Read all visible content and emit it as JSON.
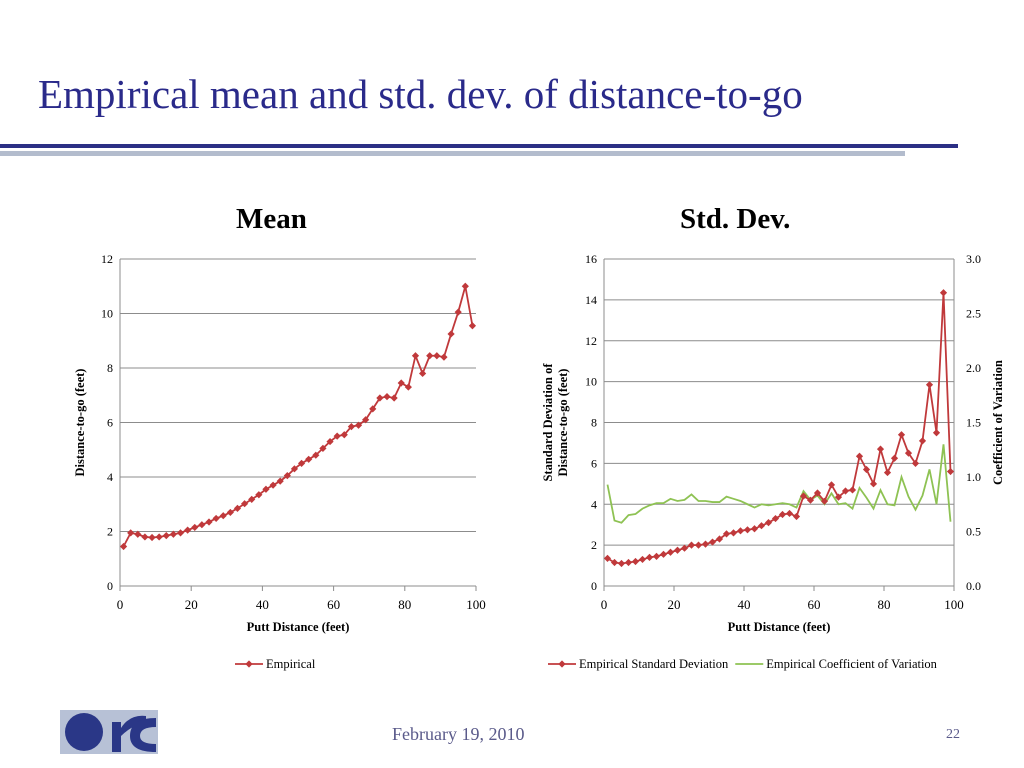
{
  "slide": {
    "title": "Empirical mean and std. dev. of distance-to-go",
    "footer_date": "February 19, 2010",
    "page_number": "22"
  },
  "colors": {
    "title": "#2a2a8a",
    "mean_series": "#c0393b",
    "cv_series": "#8ec253",
    "logo_blue": "#2a3787"
  },
  "chart_data": [
    {
      "type": "line",
      "title": "Mean",
      "xlabel": "Putt Distance (feet)",
      "ylabel": "Distance-to-go (feet)",
      "xlim": [
        0,
        100
      ],
      "ylim": [
        0,
        12
      ],
      "x_ticks": [
        "0",
        "20",
        "40",
        "60",
        "80",
        "100"
      ],
      "y_ticks": [
        "0",
        "2",
        "4",
        "6",
        "8",
        "10",
        "12"
      ],
      "grid": "horizontal",
      "legend": "bottom",
      "series": [
        {
          "name": "Empirical",
          "marker": "diamond",
          "x": [
            1,
            3,
            5,
            7,
            9,
            11,
            13,
            15,
            17,
            19,
            21,
            23,
            25,
            27,
            29,
            31,
            33,
            35,
            37,
            39,
            41,
            43,
            45,
            47,
            49,
            51,
            53,
            55,
            57,
            59,
            61,
            63,
            65,
            67,
            69,
            71,
            73,
            75,
            77,
            79,
            81,
            83,
            85,
            87,
            89,
            91,
            93,
            95,
            97,
            99
          ],
          "y": [
            1.45,
            1.95,
            1.9,
            1.8,
            1.78,
            1.8,
            1.85,
            1.9,
            1.95,
            2.05,
            2.15,
            2.25,
            2.35,
            2.48,
            2.58,
            2.7,
            2.85,
            3.02,
            3.18,
            3.35,
            3.55,
            3.7,
            3.85,
            4.05,
            4.3,
            4.5,
            4.65,
            4.8,
            5.05,
            5.3,
            5.5,
            5.55,
            5.85,
            5.9,
            6.1,
            6.5,
            6.9,
            6.95,
            6.9,
            7.45,
            7.3,
            8.45,
            7.8,
            8.45,
            8.45,
            8.4,
            9.25,
            10.05,
            11.0,
            9.55
          ]
        }
      ]
    },
    {
      "type": "line",
      "title": "Std. Dev.",
      "xlabel": "Putt Distance (feet)",
      "ylabel": "Standard Deviation of Distance-to-go (feet)",
      "y2label": "Coefficient of Variation",
      "xlim": [
        0,
        100
      ],
      "ylim": [
        0,
        16
      ],
      "y2lim": [
        0,
        3
      ],
      "x_ticks": [
        "0",
        "20",
        "40",
        "60",
        "80",
        "100"
      ],
      "y_ticks": [
        "0",
        "2",
        "4",
        "6",
        "8",
        "10",
        "12",
        "14",
        "16"
      ],
      "y2_ticks": [
        "0.0",
        "0.5",
        "1.0",
        "1.5",
        "2.0",
        "2.5",
        "3.0"
      ],
      "grid": "horizontal",
      "legend": "bottom",
      "series": [
        {
          "name": "Empirical Standard Deviation",
          "axis": "left",
          "marker": "diamond",
          "x": [
            1,
            3,
            5,
            7,
            9,
            11,
            13,
            15,
            17,
            19,
            21,
            23,
            25,
            27,
            29,
            31,
            33,
            35,
            37,
            39,
            41,
            43,
            45,
            47,
            49,
            51,
            53,
            55,
            57,
            59,
            61,
            63,
            65,
            67,
            69,
            71,
            73,
            75,
            77,
            79,
            81,
            83,
            85,
            87,
            89,
            91,
            93,
            95,
            97,
            99
          ],
          "y": [
            1.35,
            1.15,
            1.1,
            1.15,
            1.2,
            1.3,
            1.4,
            1.45,
            1.55,
            1.65,
            1.75,
            1.85,
            2.0,
            2.0,
            2.05,
            2.15,
            2.3,
            2.55,
            2.6,
            2.7,
            2.75,
            2.8,
            2.95,
            3.1,
            3.3,
            3.5,
            3.55,
            3.4,
            4.4,
            4.2,
            4.55,
            4.15,
            4.95,
            4.35,
            4.65,
            4.7,
            6.35,
            5.7,
            5.0,
            6.7,
            5.55,
            6.25,
            7.4,
            6.5,
            6.0,
            7.1,
            9.85,
            7.5,
            14.35,
            5.6
          ]
        },
        {
          "name": "Empirical Coefficient of Variation",
          "axis": "right",
          "marker": "none",
          "x": [
            1,
            3,
            5,
            7,
            9,
            11,
            13,
            15,
            17,
            19,
            21,
            23,
            25,
            27,
            29,
            31,
            33,
            35,
            37,
            39,
            41,
            43,
            45,
            47,
            49,
            51,
            53,
            55,
            57,
            59,
            61,
            63,
            65,
            67,
            69,
            71,
            73,
            75,
            77,
            79,
            81,
            83,
            85,
            87,
            89,
            91,
            93,
            95,
            97,
            99
          ],
          "y": [
            0.93,
            0.6,
            0.58,
            0.65,
            0.66,
            0.71,
            0.74,
            0.76,
            0.76,
            0.8,
            0.78,
            0.79,
            0.84,
            0.78,
            0.78,
            0.77,
            0.77,
            0.82,
            0.8,
            0.78,
            0.75,
            0.72,
            0.75,
            0.74,
            0.75,
            0.76,
            0.75,
            0.72,
            0.87,
            0.79,
            0.83,
            0.75,
            0.85,
            0.75,
            0.76,
            0.71,
            0.9,
            0.81,
            0.71,
            0.88,
            0.75,
            0.74,
            1.0,
            0.82,
            0.7,
            0.83,
            1.07,
            0.75,
            1.3,
            0.59
          ]
        }
      ]
    }
  ]
}
